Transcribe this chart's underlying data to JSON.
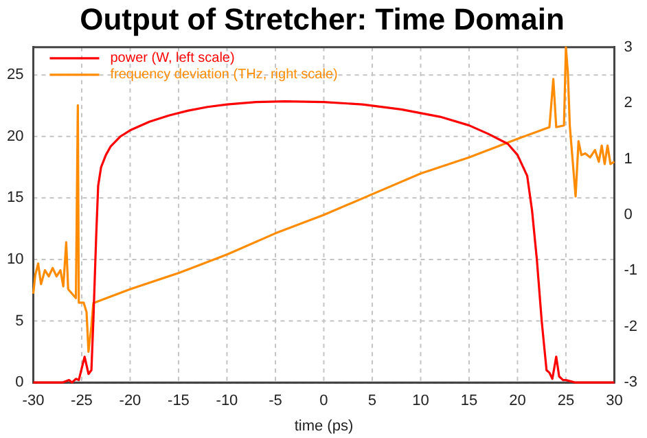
{
  "chart_data": {
    "type": "line",
    "title": "Output of Stretcher: Time Domain",
    "xlabel": "time (ps)",
    "xlim": [
      -30,
      30
    ],
    "xticks": [
      -30,
      -25,
      -20,
      -15,
      -10,
      -5,
      0,
      5,
      10,
      15,
      20,
      25,
      30
    ],
    "ylim": [
      0,
      27.25
    ],
    "yticks": [
      0,
      5,
      10,
      15,
      20,
      25
    ],
    "y2lim": [
      -3,
      3
    ],
    "y2ticks": [
      -3,
      -2,
      -1,
      0,
      1,
      2,
      3
    ],
    "grid": true,
    "legend": "top left",
    "marker": "none",
    "line_style": "solid",
    "series": [
      {
        "name": "power (W, left scale)",
        "color": "#ff0000",
        "x": [
          -30,
          -27,
          -26.3,
          -26,
          -25.6,
          -25.3,
          -24.7,
          -24.3,
          -24,
          -23.8,
          -23.5,
          -23.3,
          -23,
          -22.5,
          -22,
          -21,
          -20,
          -18,
          -16,
          -14,
          -12,
          -10,
          -7,
          -4,
          0,
          4,
          8,
          12,
          15,
          17,
          19,
          20,
          21,
          21.5,
          22,
          22.5,
          23,
          23.3,
          23.6,
          24,
          24.3,
          24.7,
          25,
          26,
          30
        ],
        "values": [
          0,
          0,
          0.2,
          0,
          0.3,
          0.2,
          2.1,
          0.7,
          1,
          5,
          12,
          16,
          17.5,
          18.5,
          19.2,
          20,
          20.5,
          21.2,
          21.7,
          22.1,
          22.4,
          22.6,
          22.8,
          22.85,
          22.8,
          22.6,
          22.2,
          21.6,
          20.9,
          20.2,
          19.4,
          18.5,
          16.8,
          14,
          10,
          5,
          1,
          0.8,
          0.3,
          2.1,
          0.5,
          0.2,
          0.2,
          0,
          0
        ]
      },
      {
        "name": "frequency deviation (THz, right scale)",
        "color": "#ff8c00",
        "axis": "y2",
        "x": [
          -30,
          -29.8,
          -29.5,
          -29.2,
          -28.8,
          -28.4,
          -28,
          -27.6,
          -27.2,
          -26.9,
          -26.6,
          -26.4,
          -26,
          -25.6,
          -25.4,
          -25.3,
          -24.8,
          -24.5,
          -24.3,
          -24,
          -23.8,
          -20,
          -15,
          -10,
          -5,
          0,
          5,
          10,
          15,
          20,
          23.3,
          23.7,
          24,
          24.8,
          25,
          25.2,
          25.4,
          26,
          26.3,
          26.6,
          27,
          27.5,
          28,
          28.4,
          28.7,
          29,
          29.3,
          29.6,
          30
        ],
        "values": [
          -1.41,
          -1.08,
          -0.87,
          -1.24,
          -0.99,
          -1.1,
          -0.95,
          -1.1,
          -0.99,
          -1.28,
          -0.49,
          -1.33,
          -1.41,
          -1.49,
          1.96,
          -1.57,
          -1.57,
          -1.74,
          -2.45,
          -1.99,
          -1.58,
          -1.33,
          -1.04,
          -0.71,
          -0.33,
          0,
          0.37,
          0.74,
          1.03,
          1.36,
          1.57,
          2.43,
          1.57,
          1.6,
          3,
          2.55,
          1.6,
          0.33,
          1.32,
          1.07,
          1.1,
          1.03,
          1.16,
          0.95,
          1.24,
          0.91,
          1.24,
          0.91,
          0.95
        ]
      }
    ]
  }
}
